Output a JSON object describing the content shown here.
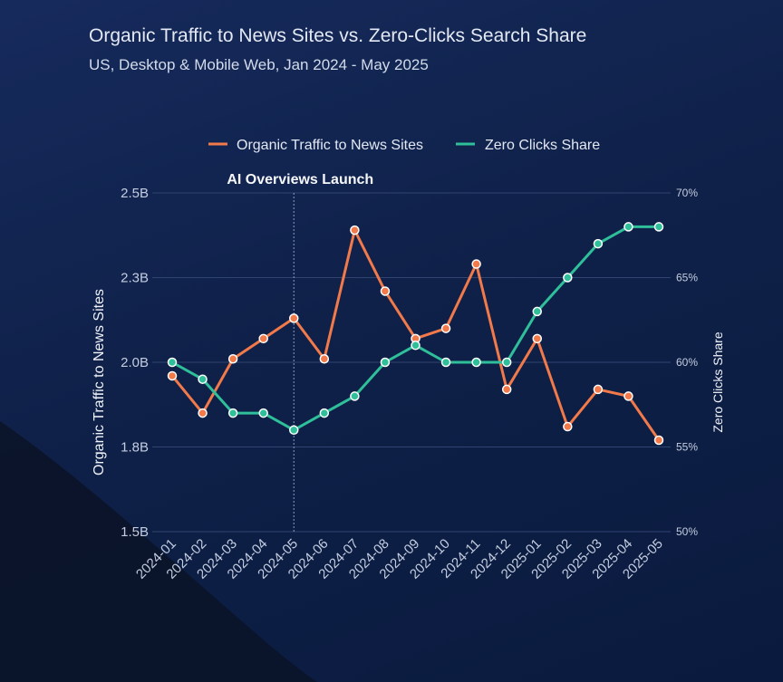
{
  "header": {
    "title": "Organic Traffic to News Sites vs. Zero-Clicks Search Share",
    "subtitle": "US, Desktop & Mobile Web, Jan 2024 - May 2025"
  },
  "colors": {
    "organic": "#f27a4a",
    "zero": "#2fbf9a",
    "grid": "#2f4470",
    "background": "#0f2149"
  },
  "chart_data": {
    "type": "line",
    "title": "Organic Traffic to News Sites vs. Zero-Clicks Search Share",
    "subtitle": "US, Desktop & Mobile Web, Jan 2024 - May 2025",
    "x": [
      "2024-01",
      "2024-02",
      "2024-03",
      "2024-04",
      "2024-05",
      "2024-06",
      "2024-07",
      "2024-08",
      "2024-09",
      "2024-10",
      "2024-11",
      "2024-12",
      "2025-01",
      "2025-02",
      "2025-03",
      "2025-04",
      "2025-05"
    ],
    "left_axis": {
      "label": "Organic Traffic to News Sites",
      "ylim": [
        1.5,
        2.5
      ],
      "ticks": [
        1.5,
        1.75,
        2.0,
        2.25,
        2.5
      ],
      "tick_labels": [
        "1.5B",
        "1.8B",
        "2.0B",
        "2.3B",
        "2.5B"
      ]
    },
    "right_axis": {
      "label": "Zero Clicks Share",
      "ylim": [
        50,
        70
      ],
      "ticks": [
        50,
        55,
        60,
        65,
        70
      ],
      "tick_labels": [
        "50%",
        "55%",
        "60%",
        "65%",
        "70%"
      ]
    },
    "series": [
      {
        "name": "Organic Traffic to News Sites",
        "axis": "left",
        "unit": "B",
        "values": [
          1.96,
          1.85,
          2.01,
          2.07,
          2.13,
          2.01,
          2.39,
          2.21,
          2.07,
          2.1,
          2.29,
          1.92,
          2.07,
          1.81,
          1.92,
          1.9,
          1.77
        ]
      },
      {
        "name": "Zero Clicks Share",
        "axis": "right",
        "unit": "%",
        "values": [
          60.0,
          59.0,
          57.0,
          57.0,
          56.0,
          57.0,
          58.0,
          60.0,
          61.0,
          60.0,
          60.0,
          60.0,
          63.0,
          65.0,
          67.0,
          68.0,
          68.0
        ]
      }
    ],
    "annotations": [
      {
        "text": "AI Overviews Launch",
        "x": "2024-05"
      }
    ],
    "legend": {
      "position": "top-center"
    },
    "grid": true
  }
}
